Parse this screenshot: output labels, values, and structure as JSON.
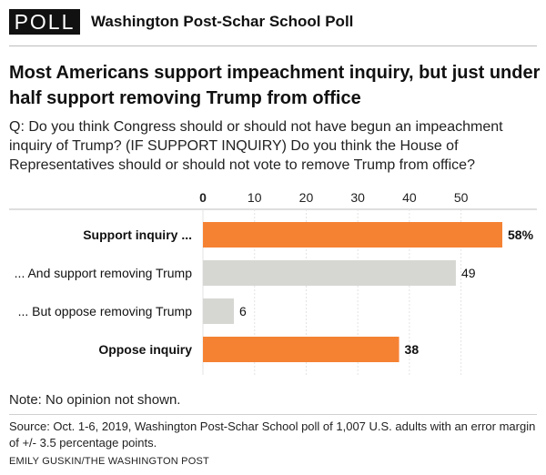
{
  "header": {
    "badge": "POLL",
    "poll_name": "Washington Post-Schar School Poll"
  },
  "title": "Most Americans support impeachment inquiry, but just under half support removing Trump from office",
  "question": "Q: Do you think Congress should or should not have begun an impeachment inquiry of Trump? (IF SUPPORT INQUIRY) Do you think the House of Representatives should or should not vote to remove Trump from office?",
  "note": "Note: No opinion not shown.",
  "source": "Source: Oct. 1-6, 2019, Washington Post-Schar School poll of 1,007 U.S. adults with an error margin of +/- 3.5 percentage points.",
  "credit": "EMILY GUSKIN/THE WASHINGTON POST",
  "colors": {
    "primary": "#f58233",
    "secondary": "#d6d6d3"
  },
  "chart_data": {
    "type": "bar",
    "orientation": "horizontal",
    "xlim": [
      0,
      58
    ],
    "ticks": [
      0,
      10,
      20,
      30,
      40,
      50
    ],
    "grid": true,
    "categories": [
      "Support inquiry ...",
      "... And support removing Trump",
      "... But oppose removing Trump",
      "Oppose inquiry"
    ],
    "values": [
      58,
      49,
      6,
      38
    ],
    "value_labels": [
      "58%",
      "49",
      "6",
      "38"
    ],
    "bold_categories": [
      true,
      false,
      false,
      true
    ],
    "bar_colors": [
      "primary",
      "secondary",
      "secondary",
      "primary"
    ]
  }
}
